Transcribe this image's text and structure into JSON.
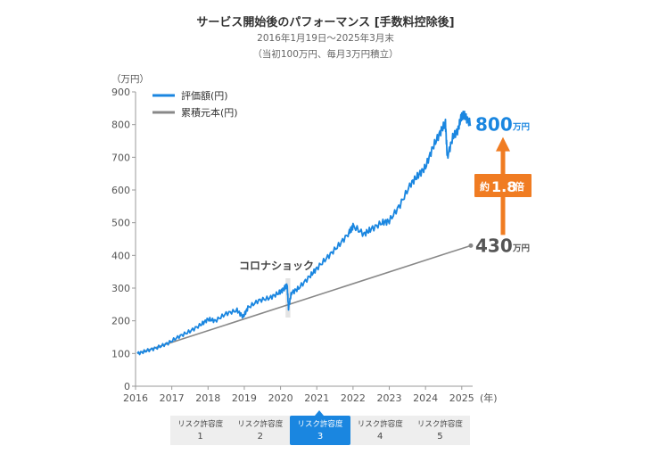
{
  "header": {
    "title": "サービス開始後のパフォーマンス [手数料控除後]",
    "period": "2016年1月19日〜2025年3月末",
    "note": "（当初100万円、毎月3万円積立）"
  },
  "chart_data": {
    "type": "line",
    "y_unit_label": "（万円）",
    "x_unit_label": "(年)",
    "xlim": [
      2016.0,
      2025.3
    ],
    "ylim": [
      0,
      900
    ],
    "y_ticks": [
      0,
      100,
      200,
      300,
      400,
      500,
      600,
      700,
      800,
      900
    ],
    "x_ticks": [
      2016,
      2017,
      2018,
      2019,
      2020,
      2021,
      2022,
      2023,
      2024,
      2025
    ],
    "series": [
      {
        "name": "評価額(円)",
        "color": "#1a86e0",
        "x": [
          2016.05,
          2016.3,
          2016.6,
          2016.9,
          2017.2,
          2017.5,
          2017.8,
          2018.0,
          2018.2,
          2018.5,
          2018.8,
          2018.97,
          2019.1,
          2019.4,
          2019.7,
          2019.95,
          2020.1,
          2020.18,
          2020.22,
          2020.3,
          2020.5,
          2020.8,
          2021.0,
          2021.3,
          2021.6,
          2021.9,
          2022.0,
          2022.3,
          2022.5,
          2022.8,
          2023.0,
          2023.3,
          2023.6,
          2023.8,
          2024.0,
          2024.2,
          2024.4,
          2024.55,
          2024.6,
          2024.75,
          2024.9,
          2025.0,
          2025.1,
          2025.25
        ],
        "y": [
          100,
          108,
          118,
          132,
          152,
          168,
          188,
          205,
          200,
          222,
          232,
          212,
          240,
          262,
          270,
          285,
          298,
          310,
          240,
          285,
          300,
          335,
          360,
          395,
          430,
          470,
          490,
          465,
          480,
          500,
          505,
          555,
          620,
          645,
          670,
          730,
          775,
          805,
          700,
          760,
          785,
          830,
          825,
          800
        ]
      },
      {
        "name": "累積元本(円)",
        "color": "#888888",
        "x": [
          2016.05,
          2025.25
        ],
        "y": [
          100,
          430
        ]
      }
    ],
    "annotations": {
      "event": "コロナショック",
      "end_value_label": "800",
      "principal_label": "430",
      "unit": "万円",
      "ratio_prefix": "約",
      "ratio_value": "1.8",
      "ratio_suffix": "倍"
    },
    "grid": false,
    "legend_position": "top-left"
  },
  "tabs": [
    {
      "label": "リスク許容度",
      "num": "1",
      "active": false
    },
    {
      "label": "リスク許容度",
      "num": "2",
      "active": false
    },
    {
      "label": "リスク許容度",
      "num": "3",
      "active": true
    },
    {
      "label": "リスク許容度",
      "num": "4",
      "active": false
    },
    {
      "label": "リスク許容度",
      "num": "5",
      "active": false
    }
  ],
  "colors": {
    "accent": "#1a86e0",
    "principal": "#888888",
    "ratio": "#f07c22"
  }
}
